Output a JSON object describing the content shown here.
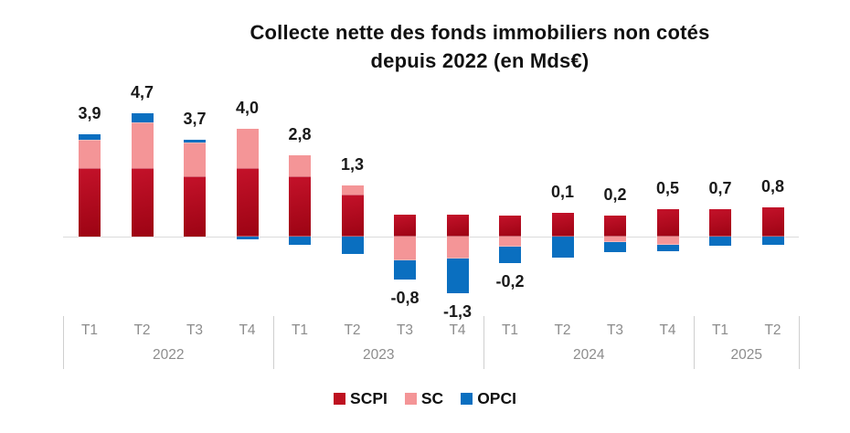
{
  "title": {
    "line1": "Collecte nette des fonds immobiliers non cotés",
    "line2": "depuis 2022 (en Mds€)"
  },
  "legend": {
    "items": [
      {
        "label": "SCPI",
        "color": "#be1120"
      },
      {
        "label": "SC",
        "color": "#f49597"
      },
      {
        "label": "OPCI",
        "color": "#0a6fc0"
      }
    ]
  },
  "colors": {
    "scpi_gradient_top": "#c4122a",
    "scpi_gradient_bottom": "#9c0313",
    "sc": "#f49597",
    "opci": "#0a6fc0",
    "axis_text": "#8c8c8c",
    "zero_line": "#dbdbdb",
    "divider": "#cfcfcf",
    "value_label": "#1a1a1a"
  },
  "chart_data": {
    "type": "bar",
    "stacked": true,
    "title": "Collecte nette des fonds immobiliers non cotés depuis 2022 (en Mds€)",
    "unit": "Mds€",
    "ylim": [
      -2.2,
      4.8
    ],
    "grid": false,
    "legend_position": "bottom",
    "categories": [
      "T1",
      "T2",
      "T3",
      "T4",
      "T1",
      "T2",
      "T3",
      "T4",
      "T1",
      "T2",
      "T3",
      "T4",
      "T1",
      "T2"
    ],
    "year_groups": [
      {
        "label": "2022",
        "quarters": 4
      },
      {
        "label": "2023",
        "quarters": 4
      },
      {
        "label": "2024",
        "quarters": 4
      },
      {
        "label": "2025",
        "quarters": 2
      }
    ],
    "series": [
      {
        "name": "SCPI",
        "values": [
          2.6,
          2.6,
          2.3,
          2.6,
          2.3,
          1.6,
          0.85,
          0.85,
          0.8,
          0.9,
          0.8,
          1.05,
          1.05,
          1.1
        ]
      },
      {
        "name": "SC",
        "values": [
          1.1,
          1.75,
          1.3,
          1.5,
          0.8,
          0.35,
          -0.9,
          -0.85,
          -0.4,
          0,
          -0.2,
          -0.3,
          0,
          0
        ]
      },
      {
        "name": "OPCI",
        "values": [
          0.2,
          0.35,
          0.1,
          -0.1,
          -0.3,
          -0.65,
          -0.75,
          -1.3,
          -0.6,
          -0.8,
          -0.4,
          -0.25,
          -0.35,
          -0.3
        ]
      }
    ],
    "totals": [
      3.9,
      4.7,
      3.7,
      4.0,
      2.8,
      1.3,
      -0.8,
      -1.3,
      -0.2,
      0.1,
      0.2,
      0.5,
      0.7,
      0.8
    ],
    "total_labels": [
      "3,9",
      "4,7",
      "3,7",
      "4,0",
      "2,8",
      "1,3",
      "-0,8",
      "-1,3",
      "-0,2",
      "0,1",
      "0,2",
      "0,5",
      "0,7",
      "0,8"
    ]
  }
}
